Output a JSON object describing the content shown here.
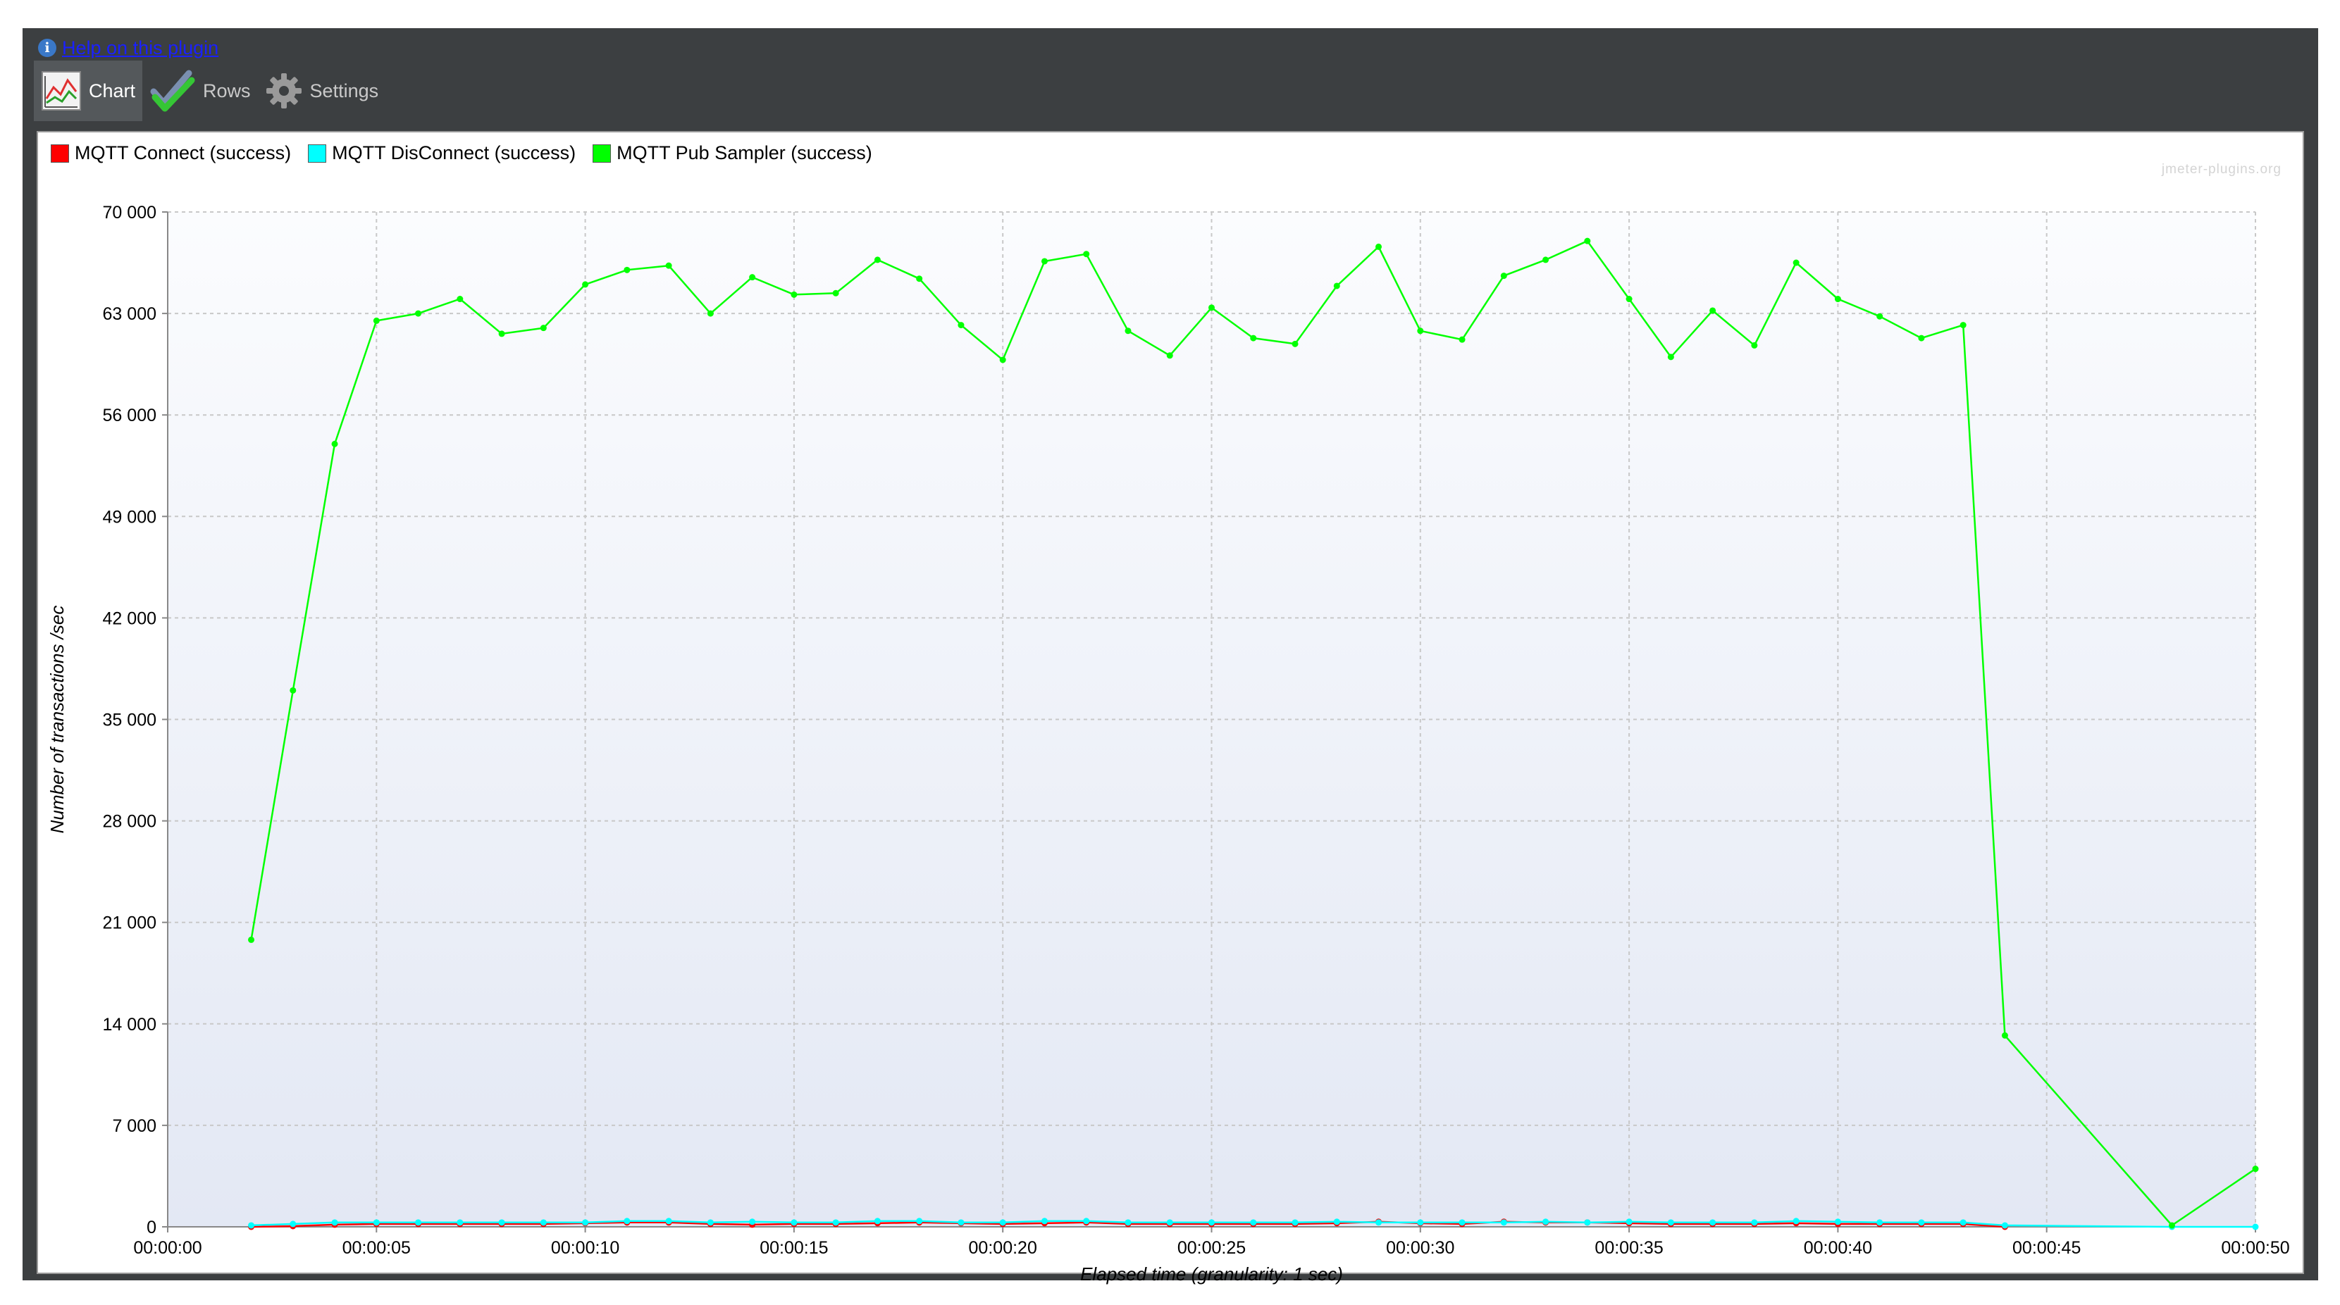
{
  "help": {
    "link_text": "Help on this plugin"
  },
  "toolbar": {
    "tabs": [
      {
        "label": "Chart"
      },
      {
        "label": "Rows"
      },
      {
        "label": "Settings"
      }
    ]
  },
  "watermark": "jmeter-plugins.org",
  "legend": [
    {
      "name": "MQTT Connect (success)",
      "color": "#ff0000"
    },
    {
      "name": "MQTT DisConnect (success)",
      "color": "#00ffff"
    },
    {
      "name": "MQTT Pub Sampler (success)",
      "color": "#00ff00"
    }
  ],
  "chart_data": {
    "type": "line",
    "title": "",
    "xlabel": "Elapsed time (granularity: 1 sec)",
    "ylabel": "Number of transactions /sec",
    "xlim": [
      0,
      50
    ],
    "ylim": [
      0,
      70000
    ],
    "yticks": [
      0,
      7000,
      14000,
      21000,
      28000,
      35000,
      42000,
      49000,
      56000,
      63000,
      70000
    ],
    "ytick_labels": [
      "0",
      "7 000",
      "14 000",
      "21 000",
      "28 000",
      "35 000",
      "42 000",
      "49 000",
      "56 000",
      "63 000",
      "70 000"
    ],
    "xticks": [
      0,
      5,
      10,
      15,
      20,
      25,
      30,
      35,
      40,
      45,
      50
    ],
    "xtick_labels": [
      "00:00:00",
      "00:00:05",
      "00:00:10",
      "00:00:15",
      "00:00:20",
      "00:00:25",
      "00:00:30",
      "00:00:35",
      "00:00:40",
      "00:00:45",
      "00:00:50"
    ],
    "grid": true,
    "legend_position": "top-left",
    "series": [
      {
        "name": "MQTT Connect (success)",
        "color": "#ff0000",
        "x": [
          2,
          3,
          4,
          5,
          6,
          7,
          8,
          9,
          10,
          11,
          12,
          13,
          14,
          15,
          16,
          17,
          18,
          19,
          20,
          21,
          22,
          23,
          24,
          25,
          26,
          27,
          28,
          29,
          30,
          31,
          32,
          33,
          34,
          35,
          36,
          37,
          38,
          39,
          40,
          41,
          42,
          43,
          44
        ],
        "values": [
          0,
          50,
          150,
          200,
          200,
          200,
          200,
          200,
          250,
          300,
          300,
          200,
          150,
          200,
          200,
          250,
          300,
          250,
          200,
          250,
          300,
          200,
          200,
          200,
          200,
          200,
          250,
          350,
          250,
          200,
          350,
          300,
          300,
          250,
          200,
          200,
          200,
          250,
          200,
          200,
          200,
          200,
          0
        ]
      },
      {
        "name": "MQTT DisConnect (success)",
        "color": "#00ffff",
        "x": [
          2,
          3,
          4,
          5,
          6,
          7,
          8,
          9,
          10,
          11,
          12,
          13,
          14,
          15,
          16,
          17,
          18,
          19,
          20,
          21,
          22,
          23,
          24,
          25,
          26,
          27,
          28,
          29,
          30,
          31,
          32,
          33,
          34,
          35,
          36,
          37,
          38,
          39,
          40,
          41,
          42,
          43,
          44,
          48,
          50
        ],
        "values": [
          100,
          200,
          300,
          300,
          300,
          300,
          300,
          300,
          300,
          400,
          400,
          300,
          350,
          300,
          300,
          400,
          400,
          300,
          300,
          400,
          400,
          300,
          300,
          300,
          300,
          300,
          350,
          300,
          300,
          300,
          300,
          350,
          300,
          350,
          300,
          300,
          300,
          400,
          350,
          300,
          300,
          300,
          100,
          0,
          0
        ]
      },
      {
        "name": "MQTT Pub Sampler (success)",
        "color": "#00ff00",
        "x": [
          2,
          3,
          4,
          5,
          6,
          7,
          8,
          9,
          10,
          11,
          12,
          13,
          14,
          15,
          16,
          17,
          18,
          19,
          20,
          21,
          22,
          23,
          24,
          25,
          26,
          27,
          28,
          29,
          30,
          31,
          32,
          33,
          34,
          35,
          36,
          37,
          38,
          39,
          40,
          41,
          42,
          43,
          44,
          48,
          50
        ],
        "values": [
          19800,
          37000,
          54000,
          62500,
          63000,
          64000,
          61600,
          62000,
          65000,
          66000,
          66300,
          63000,
          65500,
          64300,
          64400,
          66700,
          65400,
          62200,
          59800,
          66600,
          67100,
          61800,
          60100,
          63400,
          61300,
          60900,
          64900,
          67600,
          61800,
          61200,
          65600,
          66700,
          68000,
          64000,
          60000,
          63200,
          60800,
          66500,
          64000,
          62800,
          61300,
          62200,
          13200,
          100,
          4000
        ]
      }
    ]
  }
}
